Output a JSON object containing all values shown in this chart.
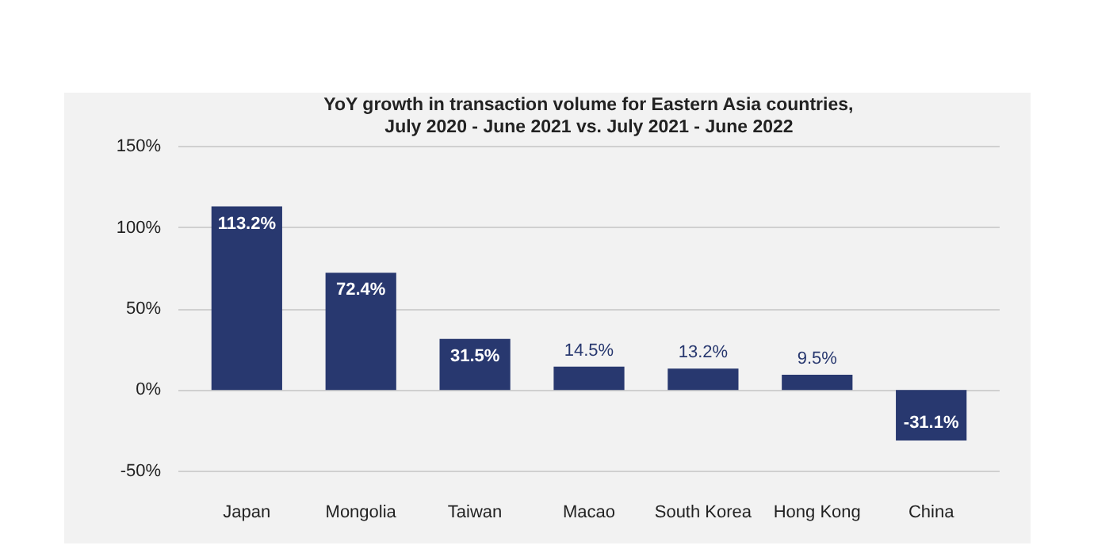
{
  "chart_data": {
    "type": "bar",
    "title": "YoY growth in transaction volume for Eastern Asia countries,",
    "subtitle": "July 2020 - June 2021 vs. July 2021 - June 2022",
    "categories": [
      "Japan",
      "Mongolia",
      "Taiwan",
      "Macao",
      "South Korea",
      "Hong Kong",
      "China"
    ],
    "values": [
      113.2,
      72.4,
      31.5,
      14.5,
      13.2,
      9.5,
      -31.1
    ],
    "value_labels": [
      "113.2%",
      "72.4%",
      "31.5%",
      "14.5%",
      "13.2%",
      "9.5%",
      "-31.1%"
    ],
    "color": "#28386f",
    "ylim": [
      -56,
      156
    ],
    "yticks": [
      {
        "value": -50,
        "label": "-50%"
      },
      {
        "value": 0,
        "label": "0%"
      },
      {
        "value": 50,
        "label": "50%"
      },
      {
        "value": 100,
        "label": "100%"
      },
      {
        "value": 150,
        "label": "150%"
      }
    ],
    "grid": "y"
  }
}
